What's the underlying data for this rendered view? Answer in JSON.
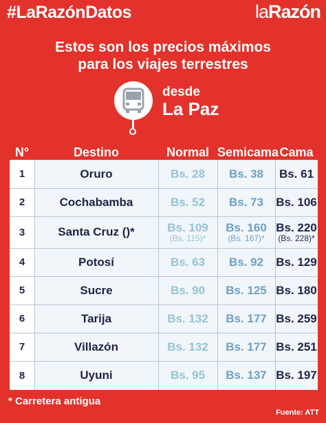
{
  "header": {
    "hashtag": "#LaRazónDatos",
    "brand_la": "la",
    "brand_razon": "Razón"
  },
  "headline": {
    "line1": "Estos son los precios máximos",
    "line2": "para los viajes terrestres"
  },
  "origin": {
    "prefix": "desde",
    "city": "La Paz",
    "icon": "bus-icon"
  },
  "columns": {
    "num": "N°",
    "destination": "Destino",
    "normal": "Normal",
    "semicama": "Semicama",
    "cama": "Cama"
  },
  "rows": [
    {
      "num": "1",
      "destination": "Oruro",
      "normal": "Bs. 28",
      "semicama": "Bs. 38",
      "cama": "Bs. 61"
    },
    {
      "num": "2",
      "destination": "Cochabamba",
      "normal": "Bs. 52",
      "semicama": "Bs. 73",
      "cama": "Bs. 106"
    },
    {
      "num": "3",
      "destination": "Santa Cruz ()*",
      "normal": "Bs. 109",
      "normal_alt": "(Bs. 115)*",
      "semicama": "Bs. 160",
      "semicama_alt": "(Bs. 167)*",
      "cama": "Bs. 220",
      "cama_alt": "(Bs. 228)*"
    },
    {
      "num": "4",
      "destination": "Potosí",
      "normal": "Bs. 63",
      "semicama": "Bs. 92",
      "cama": "Bs. 129"
    },
    {
      "num": "5",
      "destination": "Sucre",
      "normal": "Bs. 90",
      "semicama": "Bs. 125",
      "cama": "Bs. 180"
    },
    {
      "num": "6",
      "destination": "Tarija",
      "normal": "Bs. 132",
      "semicama": "Bs. 177",
      "cama": "Bs. 259"
    },
    {
      "num": "7",
      "destination": "Villazón",
      "normal": "Bs. 132",
      "semicama": "Bs. 177",
      "cama": "Bs. 251"
    },
    {
      "num": "8",
      "destination": "Uyuni",
      "normal": "Bs. 95",
      "semicama": "Bs. 137",
      "cama": "Bs. 197"
    }
  ],
  "footnote": "* Carretera antigua",
  "source": "Fuente: ATT",
  "colors": {
    "background": "#e2322b",
    "text_dark": "#1f2346",
    "normal_price": "#95c2d6",
    "semicama_price": "#6fa0c3"
  }
}
